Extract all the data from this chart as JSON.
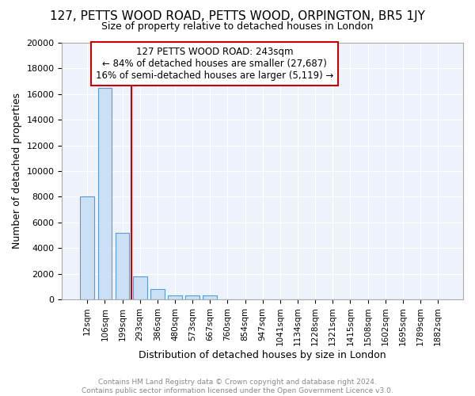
{
  "title": "127, PETTS WOOD ROAD, PETTS WOOD, ORPINGTON, BR5 1JY",
  "subtitle": "Size of property relative to detached houses in London",
  "xlabel": "Distribution of detached houses by size in London",
  "ylabel": "Number of detached properties",
  "property_label": "127 PETTS WOOD ROAD: 243sqm",
  "annotation_line1": "← 84% of detached houses are smaller (27,687)",
  "annotation_line2": "16% of semi-detached houses are larger (5,119) →",
  "footer1": "Contains HM Land Registry data © Crown copyright and database right 2024.",
  "footer2": "Contains public sector information licensed under the Open Government Licence v3.0.",
  "bar_color": "#cce0f5",
  "bar_edge_color": "#5b9bd5",
  "vline_color": "#cc0000",
  "annotation_box_color": "#cc0000",
  "background_color": "#eef2fb",
  "categories": [
    "12sqm",
    "106sqm",
    "199sqm",
    "293sqm",
    "386sqm",
    "480sqm",
    "573sqm",
    "667sqm",
    "760sqm",
    "854sqm",
    "947sqm",
    "1041sqm",
    "1134sqm",
    "1228sqm",
    "1321sqm",
    "1415sqm",
    "1508sqm",
    "1602sqm",
    "1695sqm",
    "1789sqm",
    "1882sqm"
  ],
  "values": [
    8000,
    16500,
    5200,
    1800,
    800,
    300,
    300,
    300,
    0,
    0,
    0,
    0,
    0,
    0,
    0,
    0,
    0,
    0,
    0,
    0,
    0
  ],
  "ylim": [
    0,
    20000
  ],
  "yticks": [
    0,
    2000,
    4000,
    6000,
    8000,
    10000,
    12000,
    14000,
    16000,
    18000,
    20000
  ],
  "vline_x": 2.5
}
